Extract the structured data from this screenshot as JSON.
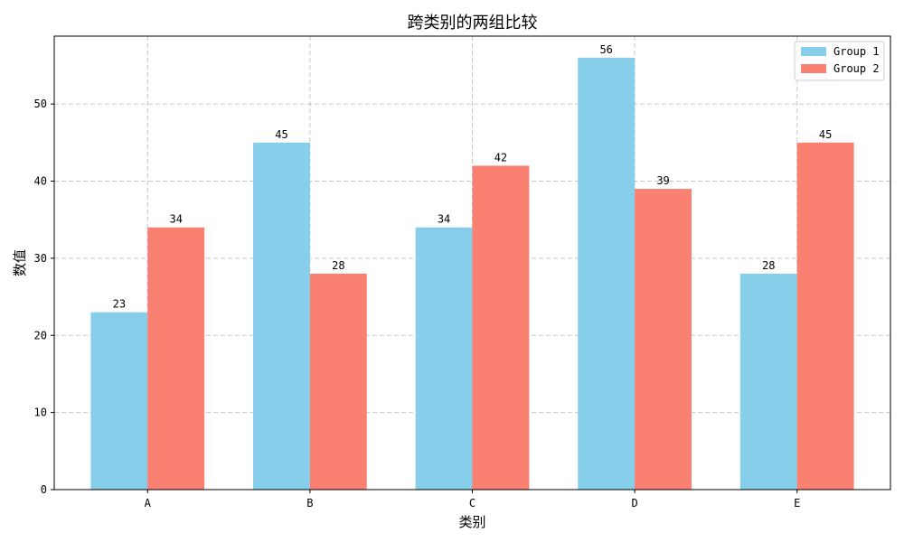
{
  "chart_data": {
    "type": "bar",
    "title": "跨类别的两组比较",
    "xlabel": "类别",
    "ylabel": "数值",
    "categories": [
      "A",
      "B",
      "C",
      "D",
      "E"
    ],
    "series": [
      {
        "name": "Group 1",
        "values": [
          23,
          45,
          34,
          56,
          28
        ],
        "color": "#87ceeb"
      },
      {
        "name": "Group 2",
        "values": [
          34,
          28,
          42,
          39,
          45
        ],
        "color": "#fa8072"
      }
    ],
    "ylim": [
      0,
      58.8
    ],
    "yticks": [
      0,
      10,
      20,
      30,
      40,
      50
    ],
    "grid": true,
    "legend_position": "top-right",
    "show_value_labels": true
  }
}
